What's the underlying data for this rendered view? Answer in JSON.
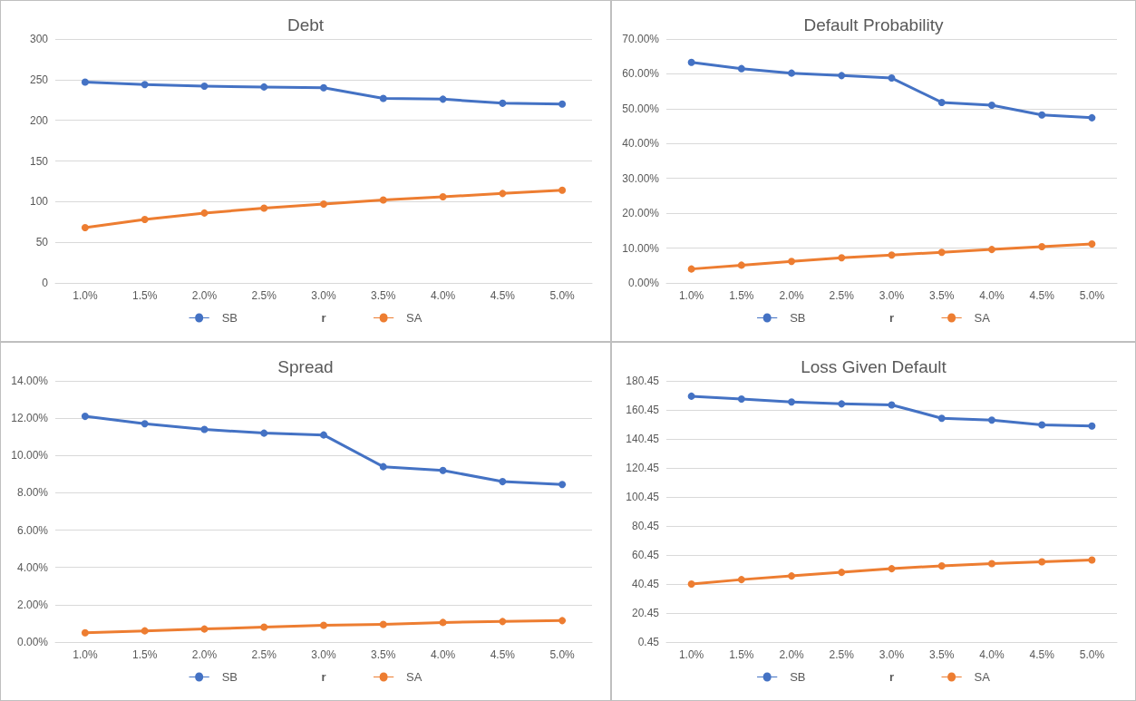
{
  "chart_data": [
    {
      "type": "line",
      "title": "Debt",
      "xlabel": "r",
      "categories": [
        "1.0%",
        "1.5%",
        "2.0%",
        "2.5%",
        "3.0%",
        "3.5%",
        "4.0%",
        "4.5%",
        "5.0%"
      ],
      "series": [
        {
          "name": "SB",
          "color": "#4472c4",
          "values": [
            247,
            244,
            242,
            241,
            240,
            227,
            226,
            221,
            220
          ]
        },
        {
          "name": "SA",
          "color": "#ed7d31",
          "values": [
            68,
            78,
            86,
            92,
            97,
            102,
            106,
            110,
            114
          ]
        }
      ],
      "ylim": [
        0,
        300
      ],
      "yticks": [
        0,
        50,
        100,
        150,
        200,
        250,
        300
      ],
      "grid": "y",
      "legend": "bottom",
      "marker": "circle",
      "line_style": "solid"
    },
    {
      "type": "line",
      "title": "Default Probability",
      "xlabel": "r",
      "categories": [
        "1.0%",
        "1.5%",
        "2.0%",
        "2.5%",
        "3.0%",
        "3.5%",
        "4.0%",
        "4.5%",
        "5.0%"
      ],
      "series": [
        {
          "name": "SB",
          "color": "#4472c4",
          "values": [
            63.3,
            61.5,
            60.2,
            59.5,
            58.8,
            51.8,
            51.0,
            48.2,
            47.4
          ]
        },
        {
          "name": "SA",
          "color": "#ed7d31",
          "values": [
            4.0,
            5.1,
            6.2,
            7.2,
            8.0,
            8.8,
            9.6,
            10.4,
            11.2
          ]
        }
      ],
      "ylim": [
        0,
        70
      ],
      "yticks": [
        {
          "value": 0,
          "label": "0.00%"
        },
        {
          "value": 10,
          "label": "10.00%"
        },
        {
          "value": 20,
          "label": "20.00%"
        },
        {
          "value": 30,
          "label": "30.00%"
        },
        {
          "value": 40,
          "label": "40.00%"
        },
        {
          "value": 50,
          "label": "50.00%"
        },
        {
          "value": 60,
          "label": "60.00%"
        },
        {
          "value": 70,
          "label": "70.00%"
        }
      ],
      "grid": "y",
      "legend": "bottom",
      "marker": "circle",
      "line_style": "solid"
    },
    {
      "type": "line",
      "title": "Spread",
      "xlabel": "r",
      "categories": [
        "1.0%",
        "1.5%",
        "2.0%",
        "2.5%",
        "3.0%",
        "3.5%",
        "4.0%",
        "4.5%",
        "5.0%"
      ],
      "series": [
        {
          "name": "SB",
          "color": "#4472c4",
          "values": [
            12.1,
            11.7,
            11.4,
            11.2,
            11.1,
            9.4,
            9.2,
            8.6,
            8.45
          ]
        },
        {
          "name": "SA",
          "color": "#ed7d31",
          "values": [
            0.5,
            0.6,
            0.7,
            0.8,
            0.9,
            0.95,
            1.05,
            1.1,
            1.15
          ]
        }
      ],
      "ylim": [
        0,
        14
      ],
      "yticks": [
        {
          "value": 0,
          "label": "0.00%"
        },
        {
          "value": 2,
          "label": "2.00%"
        },
        {
          "value": 4,
          "label": "4.00%"
        },
        {
          "value": 6,
          "label": "6.00%"
        },
        {
          "value": 8,
          "label": "8.00%"
        },
        {
          "value": 10,
          "label": "10.00%"
        },
        {
          "value": 12,
          "label": "12.00%"
        },
        {
          "value": 14,
          "label": "14.00%"
        }
      ],
      "grid": "y",
      "legend": "bottom",
      "marker": "circle",
      "line_style": "solid"
    },
    {
      "type": "line",
      "title": "Loss Given Default",
      "xlabel": "r",
      "categories": [
        "1.0%",
        "1.5%",
        "2.0%",
        "2.5%",
        "3.0%",
        "3.5%",
        "4.0%",
        "4.5%",
        "5.0%"
      ],
      "series": [
        {
          "name": "SB",
          "color": "#4472c4",
          "values": [
            169.9,
            167.9,
            165.9,
            164.6,
            163.9,
            154.7,
            153.4,
            150.1,
            149.4
          ]
        },
        {
          "name": "SA",
          "color": "#ed7d31",
          "values": [
            40.5,
            43.5,
            46,
            48.5,
            51,
            53,
            54.5,
            55.8,
            57
          ]
        }
      ],
      "ylim": [
        0.45,
        180.45
      ],
      "yticks": [
        0.45,
        20.45,
        40.45,
        60.45,
        80.45,
        100.45,
        120.45,
        140.45,
        160.45,
        180.45
      ],
      "grid": "y",
      "legend": "bottom",
      "marker": "circle",
      "line_style": "solid"
    }
  ]
}
